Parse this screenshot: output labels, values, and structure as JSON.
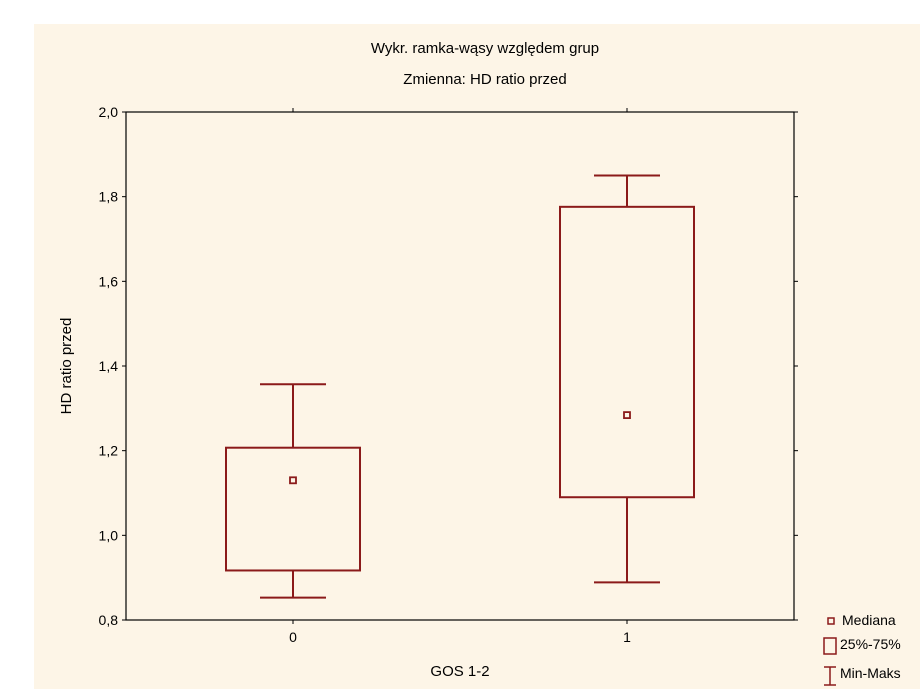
{
  "chart_data": {
    "type": "box",
    "title": "Wykr. ramka-wąsy względem grup",
    "subtitle": "Zmienna:  HD ratio przed",
    "xlabel": "GOS 1-2",
    "ylabel": "HD ratio przed",
    "ylim": [
      0.8,
      2.0
    ],
    "yticks": [
      "0,8",
      "1,0",
      "1,2",
      "1,4",
      "1,6",
      "1,8",
      "2,0"
    ],
    "ytick_values": [
      0.8,
      1.0,
      1.2,
      1.4,
      1.6,
      1.8,
      2.0
    ],
    "categories": [
      "0",
      "1"
    ],
    "groups": [
      {
        "category": "0",
        "min": 0.853,
        "q1": 0.917,
        "median": 1.13,
        "q3": 1.207,
        "max": 1.357
      },
      {
        "category": "1",
        "min": 0.889,
        "q1": 1.09,
        "median": 1.284,
        "q3": 1.776,
        "max": 1.85
      }
    ],
    "legend": {
      "placement": "bottom-right",
      "items": [
        "Mediana",
        "25%-75%",
        "Min-Maks"
      ]
    },
    "colors": {
      "box": "#8b1a1a",
      "background": "#fdf5e7",
      "axis": "#000000"
    }
  }
}
